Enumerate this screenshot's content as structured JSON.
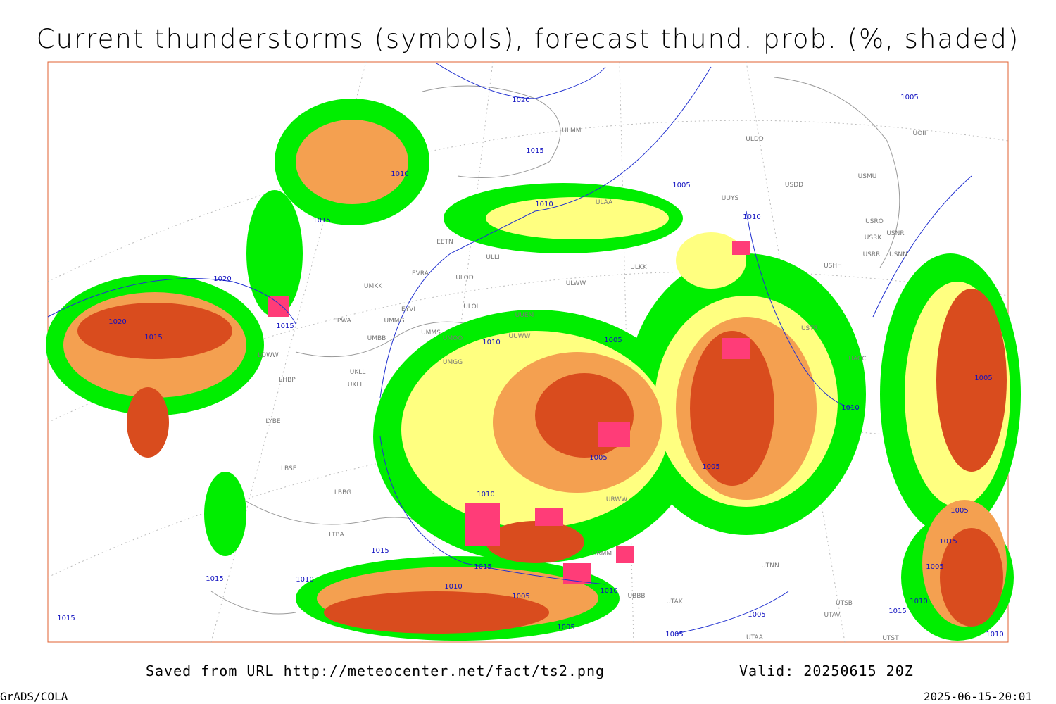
{
  "header": {
    "title": "Current thunderstorms (symbols), forecast thund. prob. (%, shaded)"
  },
  "map": {
    "isobar_labels": [
      "1020",
      "1015",
      "1010",
      "1015",
      "1010",
      "1005",
      "1010",
      "1020",
      "1020",
      "1015",
      "1015",
      "1010",
      "1005",
      "1005",
      "1005",
      "1010",
      "1005",
      "1010",
      "1015",
      "1015",
      "1010",
      "1015",
      "1010",
      "1005",
      "1010",
      "1005",
      "1005",
      "1015",
      "1005",
      "1015",
      "1010",
      "1015",
      "1010",
      "1005",
      "1005",
      "1005"
    ],
    "stations": [
      "ULMM",
      "ULDD",
      "USDD",
      "USMU",
      "ULAA",
      "UUYS",
      "USRO",
      "USRK",
      "USNR",
      "USRR",
      "USNN",
      "USHH",
      "ULKK",
      "ULWW",
      "ULOL",
      "ULOD",
      "ULLI",
      "EETN",
      "EVRA",
      "UMKK",
      "EYVI",
      "UMMG",
      "EPWA",
      "UMBB",
      "UMMS",
      "UMOO",
      "UUEM",
      "UUWW",
      "UMGG",
      "UKLL",
      "UKLI",
      "LOWW",
      "LHBP",
      "LYBE",
      "LBSF",
      "LBBG",
      "LTBA",
      "URWW",
      "URMM",
      "UBBB",
      "UTNN",
      "USTR",
      "UACC",
      "UTAK",
      "UTSB",
      "UTAV",
      "UTAA",
      "UTST",
      "UOII"
    ]
  },
  "footer": {
    "source": "Saved from URL http://meteocenter.net/fact/ts2.png",
    "valid": "Valid: 20250615 20Z",
    "software": "GrADS/COLA",
    "timestamp": "2025-06-15-20:01"
  }
}
